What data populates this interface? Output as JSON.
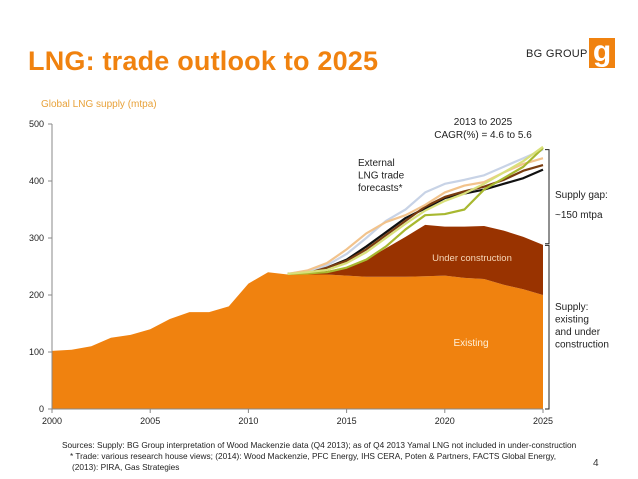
{
  "slide": {
    "title": "LNG: trade outlook to 2025",
    "brand": "BG GROUP",
    "logo_letter": "g",
    "page_number": "4",
    "sources": [
      "Sources: Supply: BG Group interpretation of Wood Mackenzie data (Q4 2013); as of Q4 2013 Yamal LNG not included in under-construction",
      "* Trade: various research house views; (2014): Wood Mackenzie, PFC Energy, IHS CERA, Poten & Partners, FACTS Global Energy,",
      "(2013): PIRA, Gas Strategies"
    ]
  },
  "colors": {
    "accent": "#f0820f",
    "existing": "#f0820f",
    "under_construction": "#993300",
    "ylabel": "#e8a23a"
  },
  "chart_data": {
    "type": "area",
    "ylabel": "Global LNG supply (mtpa)",
    "xlim": [
      2000,
      2025
    ],
    "ylim": [
      0,
      500
    ],
    "xticks": [
      2000,
      2005,
      2010,
      2015,
      2020,
      2025
    ],
    "yticks": [
      0,
      100,
      200,
      300,
      400,
      500
    ],
    "grid": false,
    "areas": [
      {
        "name": "Existing",
        "x": [
          2000,
          2001,
          2002,
          2003,
          2004,
          2005,
          2006,
          2007,
          2008,
          2009,
          2010,
          2011,
          2012,
          2013,
          2014,
          2015,
          2016,
          2017,
          2018,
          2019,
          2020,
          2021,
          2022,
          2023,
          2024,
          2025
        ],
        "values": [
          102,
          104,
          110,
          125,
          130,
          140,
          158,
          170,
          170,
          180,
          220,
          240,
          236,
          236,
          236,
          234,
          232,
          232,
          232,
          233,
          234,
          230,
          228,
          218,
          210,
          200
        ]
      },
      {
        "name": "Under construction",
        "x": [
          2012,
          2013,
          2014,
          2015,
          2016,
          2017,
          2018,
          2019,
          2020,
          2021,
          2022,
          2023,
          2024,
          2025
        ],
        "values": [
          0,
          2,
          6,
          15,
          30,
          50,
          70,
          90,
          86,
          90,
          93,
          95,
          92,
          88
        ]
      }
    ],
    "series": [
      {
        "x": [
          2012,
          2013,
          2014,
          2015,
          2016,
          2017,
          2018,
          2019,
          2020,
          2021,
          2022,
          2023,
          2024,
          2025
        ],
        "values": [
          237,
          240,
          248,
          262,
          285,
          310,
          335,
          352,
          370,
          378,
          385,
          395,
          405,
          420
        ],
        "color": "#111111"
      },
      {
        "x": [
          2012,
          2013,
          2014,
          2015,
          2016,
          2017,
          2018,
          2019,
          2020,
          2021,
          2022,
          2023,
          2024,
          2025
        ],
        "values": [
          237,
          240,
          248,
          260,
          280,
          305,
          330,
          355,
          372,
          382,
          390,
          402,
          418,
          428
        ],
        "color": "#7a3d10"
      },
      {
        "x": [
          2012,
          2013,
          2014,
          2015,
          2016,
          2017,
          2018,
          2019,
          2020,
          2021,
          2022,
          2023,
          2024,
          2025
        ],
        "values": [
          237,
          242,
          252,
          272,
          300,
          330,
          350,
          380,
          395,
          402,
          410,
          425,
          440,
          455
        ],
        "color": "#c8d3e6"
      },
      {
        "x": [
          2012,
          2013,
          2014,
          2015,
          2016,
          2017,
          2018,
          2019,
          2020,
          2021,
          2022,
          2023,
          2024,
          2025
        ],
        "values": [
          237,
          243,
          256,
          280,
          308,
          328,
          340,
          358,
          380,
          392,
          398,
          415,
          430,
          440
        ],
        "color": "#f2c38c"
      },
      {
        "x": [
          2012,
          2013,
          2014,
          2015,
          2016,
          2017,
          2018,
          2019,
          2020,
          2021,
          2022,
          2023,
          2024,
          2025
        ],
        "values": [
          237,
          238,
          240,
          248,
          262,
          285,
          315,
          340,
          342,
          350,
          385,
          405,
          425,
          458
        ],
        "color": "#a8b830"
      },
      {
        "x": [
          2012,
          2013,
          2014,
          2015,
          2016,
          2017,
          2018,
          2019,
          2020,
          2021,
          2022,
          2023,
          2024,
          2025
        ],
        "values": [
          237,
          240,
          244,
          256,
          275,
          300,
          325,
          348,
          365,
          378,
          395,
          415,
          435,
          460
        ],
        "color": "#d9e07a"
      }
    ],
    "annotations": [
      {
        "id": "cagr",
        "lines": [
          "2013 to 2025",
          "CAGR(%) = 4.6 to 5.6"
        ]
      },
      {
        "id": "forecasts",
        "lines": [
          "External",
          "LNG trade",
          "forecasts*"
        ]
      },
      {
        "id": "gap",
        "lines": [
          "Supply gap:",
          "~150 mtpa"
        ]
      },
      {
        "id": "supply",
        "lines": [
          "Supply:",
          "existing",
          "and under",
          "construction"
        ]
      },
      {
        "id": "label-existing",
        "lines": [
          "Existing"
        ]
      },
      {
        "id": "label-uc",
        "lines": [
          "Under construction"
        ]
      }
    ]
  }
}
